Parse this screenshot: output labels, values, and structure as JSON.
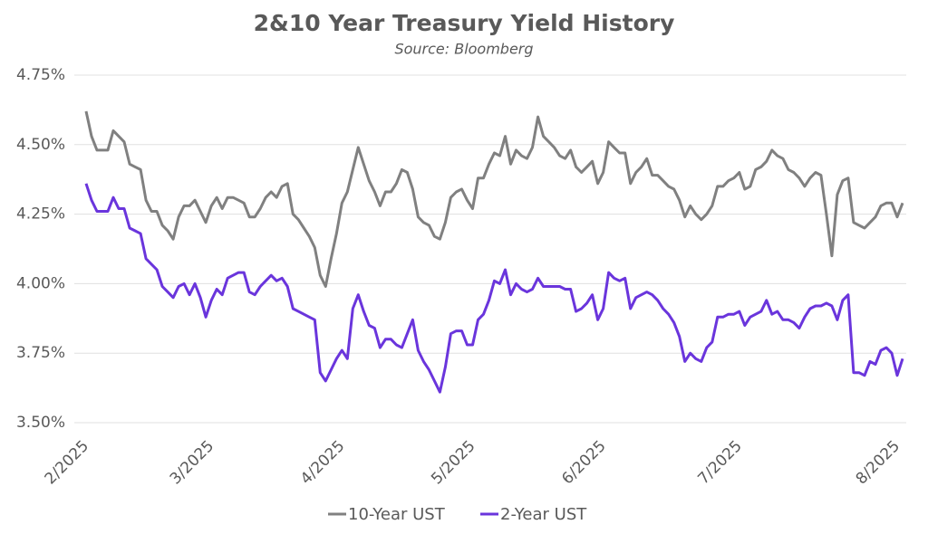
{
  "chart_data": {
    "type": "line",
    "title": "2&10 Year Treasury Yield History",
    "subtitle": "Source: Bloomberg",
    "categories": [
      "2/2025",
      null,
      null,
      null,
      null,
      null,
      null,
      null,
      null,
      null,
      null,
      null,
      null,
      null,
      null,
      null,
      null,
      null,
      null,
      null,
      null,
      null,
      null,
      "3/2025",
      null,
      null,
      null,
      null,
      null,
      null,
      null,
      null,
      null,
      null,
      null,
      null,
      null,
      null,
      null,
      null,
      null,
      null,
      null,
      null,
      null,
      null,
      null,
      "4/2025",
      null,
      null,
      null,
      null,
      null,
      null,
      null,
      null,
      null,
      null,
      null,
      null,
      null,
      null,
      null,
      null,
      null,
      null,
      null,
      null,
      null,
      null,
      null,
      "5/2025",
      null,
      null,
      null,
      null,
      null,
      null,
      null,
      null,
      null,
      null,
      null,
      null,
      null,
      null,
      null,
      null,
      null,
      null,
      null,
      null,
      null,
      null,
      null,
      "6/2025",
      null,
      null,
      null,
      null,
      null,
      null,
      null,
      null,
      null,
      null,
      null,
      null,
      null,
      null,
      null,
      null,
      null,
      null,
      null,
      null,
      null,
      null,
      null,
      null,
      "7/2025",
      null,
      null,
      null,
      null,
      null,
      null,
      null,
      null,
      null,
      null,
      null,
      null,
      null,
      null,
      null,
      null,
      null,
      null,
      null,
      null,
      null,
      null,
      null,
      null,
      null,
      null,
      null,
      null,
      "8/2025",
      null
    ],
    "series": [
      {
        "name": "10-Year UST",
        "color": "#808080",
        "values": [
          4.62,
          4.53,
          4.48,
          4.48,
          4.48,
          4.55,
          4.53,
          4.51,
          4.43,
          4.42,
          4.41,
          4.3,
          4.26,
          4.26,
          4.21,
          4.19,
          4.16,
          4.24,
          4.28,
          4.28,
          4.3,
          4.26,
          4.22,
          4.28,
          4.31,
          4.27,
          4.31,
          4.31,
          4.3,
          4.29,
          4.24,
          4.24,
          4.27,
          4.31,
          4.33,
          4.31,
          4.35,
          4.36,
          4.25,
          4.23,
          4.2,
          4.17,
          4.13,
          4.03,
          3.99,
          4.09,
          4.18,
          4.29,
          4.33,
          4.41,
          4.49,
          4.43,
          4.37,
          4.33,
          4.28,
          4.33,
          4.33,
          4.36,
          4.41,
          4.4,
          4.34,
          4.24,
          4.22,
          4.21,
          4.17,
          4.16,
          4.22,
          4.31,
          4.33,
          4.34,
          4.3,
          4.27,
          4.38,
          4.38,
          4.43,
          4.47,
          4.46,
          4.53,
          4.43,
          4.48,
          4.46,
          4.45,
          4.49,
          4.6,
          4.53,
          4.51,
          4.49,
          4.46,
          4.45,
          4.48,
          4.42,
          4.4,
          4.42,
          4.44,
          4.36,
          4.4,
          4.51,
          4.49,
          4.47,
          4.47,
          4.36,
          4.4,
          4.42,
          4.45,
          4.39,
          4.39,
          4.37,
          4.35,
          4.34,
          4.3,
          4.24,
          4.28,
          4.25,
          4.23,
          4.25,
          4.28,
          4.35,
          4.35,
          4.37,
          4.38,
          4.4,
          4.34,
          4.35,
          4.41,
          4.42,
          4.44,
          4.48,
          4.46,
          4.45,
          4.41,
          4.4,
          4.38,
          4.35,
          4.38,
          4.4,
          4.39,
          4.25,
          4.1,
          4.32,
          4.37,
          4.38,
          4.22,
          4.21,
          4.2,
          4.22,
          4.24,
          4.28,
          4.29,
          4.29,
          4.24,
          4.29
        ]
      },
      {
        "name": "2-Year UST",
        "color": "#6a35dc",
        "values": [
          4.36,
          4.3,
          4.26,
          4.26,
          4.26,
          4.31,
          4.27,
          4.27,
          4.2,
          4.19,
          4.18,
          4.09,
          4.07,
          4.05,
          3.99,
          3.97,
          3.95,
          3.99,
          4.0,
          3.96,
          4.0,
          3.95,
          3.88,
          3.94,
          3.98,
          3.96,
          4.02,
          4.03,
          4.04,
          4.04,
          3.97,
          3.96,
          3.99,
          4.01,
          4.03,
          4.01,
          4.02,
          3.99,
          3.91,
          3.9,
          3.89,
          3.88,
          3.87,
          3.68,
          3.65,
          3.69,
          3.73,
          3.76,
          3.73,
          3.91,
          3.96,
          3.9,
          3.85,
          3.84,
          3.77,
          3.8,
          3.8,
          3.78,
          3.77,
          3.82,
          3.87,
          3.76,
          3.72,
          3.69,
          3.65,
          3.61,
          3.7,
          3.82,
          3.83,
          3.83,
          3.78,
          3.78,
          3.87,
          3.89,
          3.94,
          4.01,
          4.0,
          4.05,
          3.96,
          4.0,
          3.98,
          3.97,
          3.98,
          4.02,
          3.99,
          3.99,
          3.99,
          3.99,
          3.98,
          3.98,
          3.9,
          3.91,
          3.93,
          3.96,
          3.87,
          3.91,
          4.04,
          4.02,
          4.01,
          4.02,
          3.91,
          3.95,
          3.96,
          3.97,
          3.96,
          3.94,
          3.91,
          3.89,
          3.86,
          3.81,
          3.72,
          3.75,
          3.73,
          3.72,
          3.77,
          3.79,
          3.88,
          3.88,
          3.89,
          3.89,
          3.9,
          3.85,
          3.88,
          3.89,
          3.9,
          3.94,
          3.89,
          3.9,
          3.87,
          3.87,
          3.86,
          3.84,
          3.88,
          3.91,
          3.92,
          3.92,
          3.93,
          3.92,
          3.87,
          3.94,
          3.96,
          3.68,
          3.68,
          3.67,
          3.72,
          3.71,
          3.76,
          3.77,
          3.75,
          3.67,
          3.73
        ]
      }
    ],
    "ylim": [
      3.5,
      4.75
    ],
    "yticks": [
      {
        "value": 3.5,
        "label": "3.50%"
      },
      {
        "value": 3.75,
        "label": "3.75%"
      },
      {
        "value": 4.0,
        "label": "4.00%"
      },
      {
        "value": 4.25,
        "label": "4.25%"
      },
      {
        "value": 4.5,
        "label": "4.50%"
      },
      {
        "value": 4.75,
        "label": "4.75%"
      }
    ],
    "grid": true,
    "legend": "bottom"
  }
}
